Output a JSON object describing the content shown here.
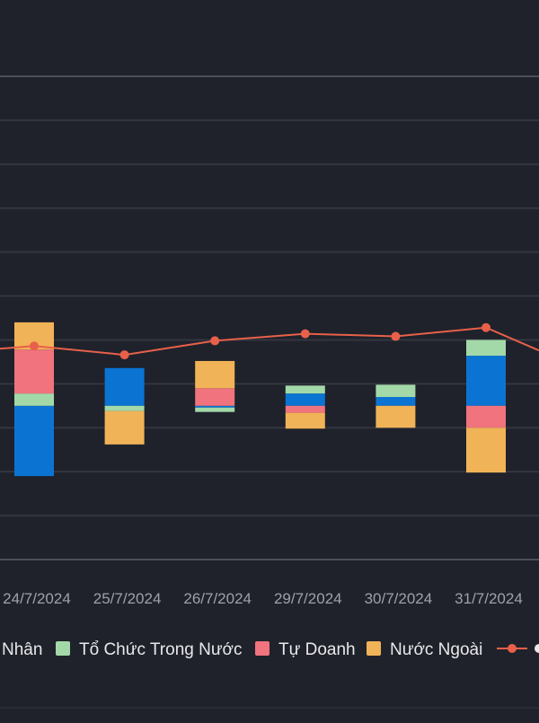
{
  "chart_data": {
    "type": "bar",
    "stacked": true,
    "categories": [
      "24/7/2024",
      "25/7/2024",
      "26/7/2024",
      "29/7/2024",
      "30/7/2024",
      "31/7/2024"
    ],
    "series": [
      {
        "name": "Cá Nhân",
        "color": "#0b74d2",
        "values": [
          -80,
          43,
          -2,
          14,
          10,
          57
        ]
      },
      {
        "name": "Tổ Chức Trong Nước",
        "color": "#a3d9a8",
        "values": [
          14,
          -6,
          -5,
          9,
          14,
          18
        ]
      },
      {
        "name": "Tự Doanh",
        "color": "#f0737d",
        "values": [
          50,
          0,
          20,
          -8,
          0,
          -25
        ]
      },
      {
        "name": "Nước Ngoài",
        "color": "#f1b358",
        "values": [
          31,
          -38,
          31,
          -18,
          -25,
          -51
        ]
      }
    ],
    "line_series": {
      "color": "#e8604a",
      "values": [
        68,
        58,
        74,
        82,
        79,
        89
      ]
    },
    "ylim": [
      -175,
      375
    ],
    "grid": true,
    "legend_position": "bottom",
    "legend_visible": {
      "item1_text": "Nhân",
      "item2_text": "Tổ Chức Trong Nước",
      "item3_text": "Tự Doanh",
      "item4_text": "Nước Ngoài"
    }
  }
}
